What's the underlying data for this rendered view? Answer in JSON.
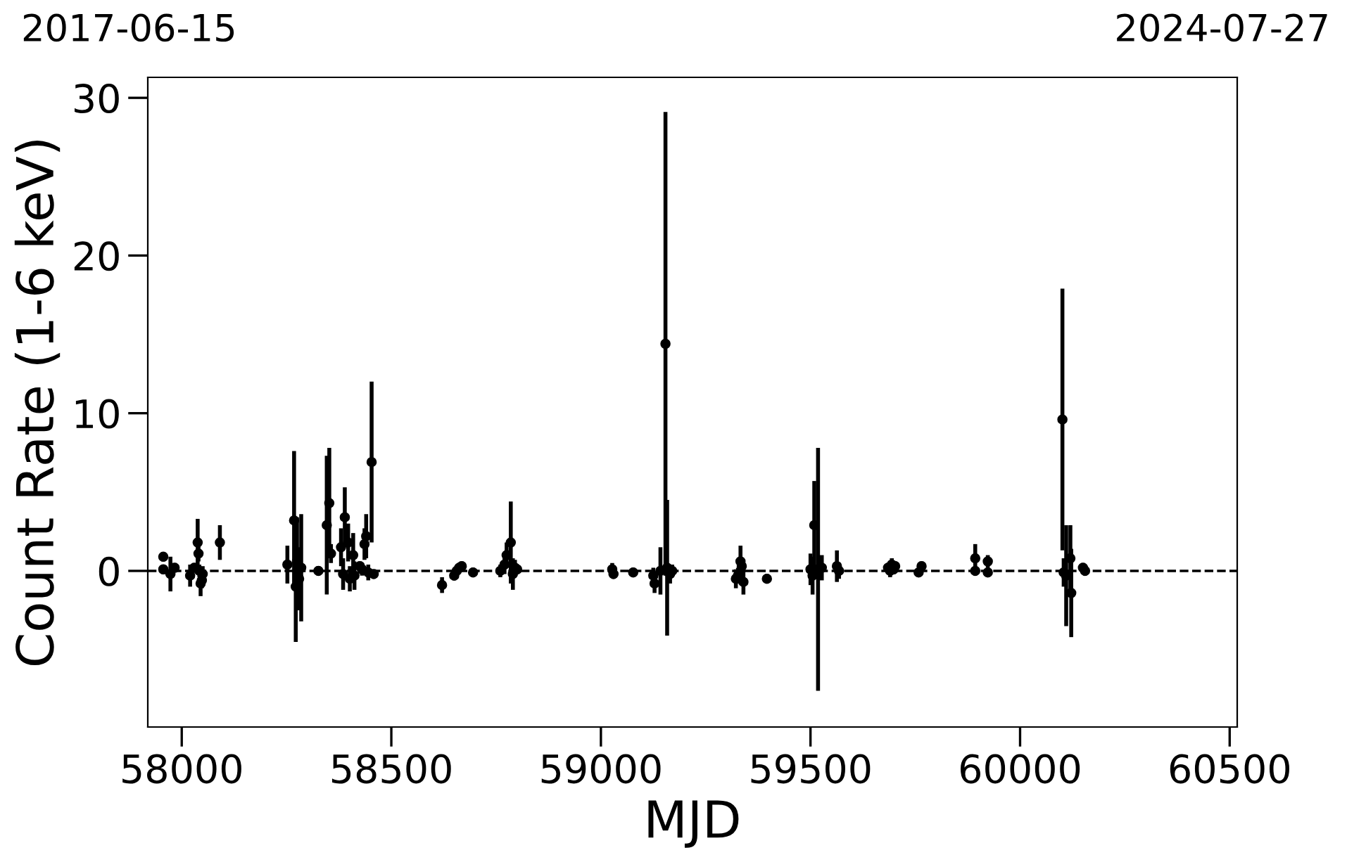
{
  "chart_data": {
    "type": "scatter",
    "xlabel": "MJD",
    "ylabel": "Count Rate (1-6 keV)",
    "annotations": [
      "2017-06-15",
      "2024-07-27"
    ],
    "xlim": [
      57919,
      60518
    ],
    "xticks": [
      58000,
      58500,
      59000,
      59500,
      60000,
      60500
    ],
    "ylim": [
      -9.9,
      31.3
    ],
    "yticks": [
      0,
      10,
      20,
      30
    ],
    "marker": "circle",
    "grid": false,
    "legend": false,
    "ref_lines": [
      {
        "axis": "y",
        "value": 0,
        "color": "#000000",
        "line_style": "dashed"
      }
    ],
    "series": [
      {
        "color": "#000000",
        "x": [
          57956,
          57956,
          57973,
          57983,
          58020,
          58030,
          58038,
          58040,
          58042,
          58045,
          58048,
          58050,
          58091,
          58252,
          58268,
          58272,
          58275,
          58280,
          58285,
          58326,
          58346,
          58352,
          58356,
          58380,
          58385,
          58389,
          58397,
          58401,
          58409,
          58412,
          58425,
          58430,
          58436,
          58440,
          58445,
          58453,
          58458,
          58621,
          58650,
          58656,
          58662,
          58668,
          58695,
          58760,
          58770,
          58775,
          58785,
          58790,
          58795,
          58800,
          59027,
          59030,
          59077,
          59125,
          59128,
          59142,
          59154,
          59158,
          59165,
          59170,
          59322,
          59327,
          59333,
          59336,
          59340,
          59396,
          59500,
          59505,
          59509,
          59518,
          59527,
          59563,
          59568,
          59685,
          59690,
          59694,
          59698,
          59702,
          59758,
          59765,
          59893,
          59893,
          59923,
          59923,
          60101,
          60104,
          60110,
          60120,
          60122,
          60150,
          60155
        ],
        "values": [
          0.9,
          0.1,
          -0.2,
          0.2,
          -0.3,
          0.2,
          1.8,
          1.1,
          0.0,
          -0.8,
          -0.6,
          -0.2,
          1.8,
          0.4,
          3.2,
          -1.0,
          0.6,
          -0.5,
          0.2,
          0.0,
          2.9,
          4.3,
          1.1,
          1.5,
          -0.2,
          3.4,
          1.8,
          -0.5,
          1.0,
          -0.3,
          0.3,
          0.1,
          1.7,
          2.2,
          -0.1,
          6.9,
          -0.2,
          -0.9,
          -0.3,
          0.0,
          0.2,
          0.3,
          -0.1,
          0.0,
          0.4,
          1.0,
          1.8,
          -0.2,
          0.2,
          0.1,
          0.1,
          -0.2,
          -0.1,
          -0.3,
          -0.8,
          0.0,
          14.4,
          0.2,
          -0.2,
          0.0,
          -0.5,
          -0.3,
          0.6,
          0.3,
          -0.7,
          -0.5,
          0.1,
          -0.3,
          2.9,
          0.1,
          0.2,
          0.3,
          0.0,
          0.2,
          0.0,
          0.4,
          0.1,
          0.3,
          -0.1,
          0.3,
          0.8,
          0.0,
          0.6,
          -0.1,
          9.6,
          -0.1,
          -0.3,
          0.8,
          -1.4,
          0.2,
          0.0
        ],
        "errors": [
          0.3,
          0.3,
          1.1,
          0.3,
          0.7,
          0.3,
          1.5,
          0.5,
          0.4,
          0.8,
          0.5,
          0.5,
          1.1,
          1.2,
          4.4,
          3.5,
          2.8,
          2.0,
          3.4,
          0.3,
          4.4,
          3.5,
          0.6,
          1.2,
          1.0,
          1.9,
          1.2,
          0.8,
          1.4,
          0.9,
          0.3,
          0.4,
          1.0,
          1.4,
          0.5,
          5.1,
          0.3,
          0.5,
          0.3,
          0.3,
          0.3,
          0.3,
          0.3,
          0.4,
          0.6,
          0.8,
          2.6,
          1.0,
          0.5,
          0.3,
          0.4,
          0.3,
          0.3,
          0.5,
          0.6,
          1.5,
          14.7,
          4.3,
          0.6,
          0.4,
          0.6,
          0.5,
          1.0,
          0.5,
          0.8,
          0.3,
          1.0,
          1.2,
          2.8,
          7.7,
          0.8,
          1.0,
          0.5,
          0.3,
          0.4,
          0.4,
          0.3,
          0.3,
          0.3,
          0.3,
          0.9,
          0.3,
          0.4,
          0.3,
          8.3,
          0.9,
          3.2,
          2.1,
          2.8,
          0.3,
          0.3
        ]
      }
    ]
  }
}
